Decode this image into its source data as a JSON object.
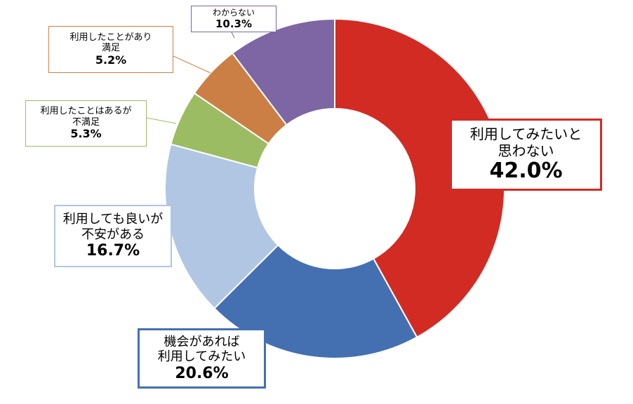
{
  "chart_data": {
    "type": "pie",
    "donut": true,
    "slices": [
      {
        "label": "利用してみたいと\n思わない",
        "value": 42.0,
        "value_label": "42.0%",
        "color": "#d22b24"
      },
      {
        "label": "機会があれば\n利用してみたい",
        "value": 20.6,
        "value_label": "20.6%",
        "color": "#4470b2"
      },
      {
        "label": "利用しても良いが\n不安がある",
        "value": 16.7,
        "value_label": "16.7%",
        "color": "#b1c6e2"
      },
      {
        "label": "利用したことはあるが\n不満足",
        "value": 5.3,
        "value_label": "5.3%",
        "color": "#9cbc63"
      },
      {
        "label": "利用したことがあり\n満足",
        "value": 5.2,
        "value_label": "5.2%",
        "color": "#cc7f45"
      },
      {
        "label": "わからない",
        "value": 10.3,
        "value_label": "10.3%",
        "color": "#7d66a3"
      }
    ]
  }
}
